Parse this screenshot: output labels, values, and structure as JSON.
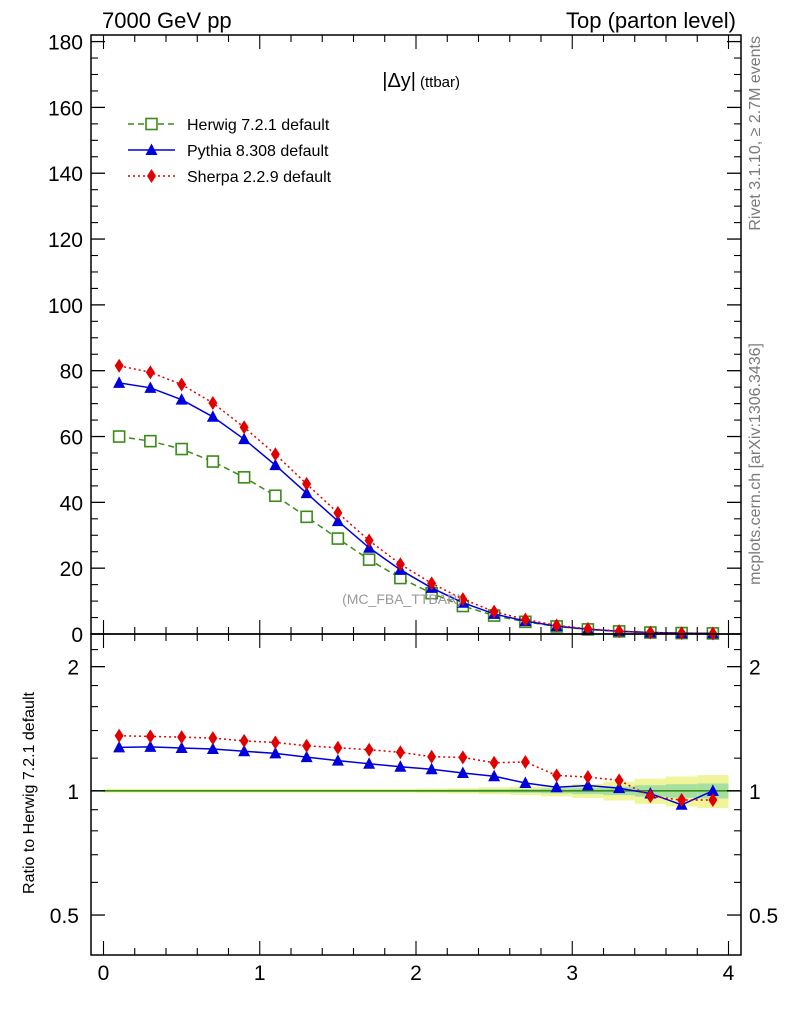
{
  "header": {
    "left_title": "7000 GeV pp",
    "right_title": "Top (parton level)"
  },
  "side_labels": {
    "rivet": "Rivet 3.1.10, ≥ 2.7M events",
    "mcplots": "mcplots.cern.ch [arXiv:1306.3436]"
  },
  "chart_data": [
    {
      "type": "line",
      "panel": "main",
      "title": "|Δy| (ttbar)",
      "title_main": "|Δy|",
      "title_suffix": "(ttbar)",
      "analysis_label": "(MC_FBA_TTBAR)",
      "xlim": [
        -0.08,
        4.08
      ],
      "ylim": [
        0,
        182
      ],
      "yticks": [
        0,
        20,
        40,
        60,
        80,
        100,
        120,
        140,
        160,
        180
      ],
      "ytick_labels": [
        "0",
        "20",
        "40",
        "60",
        "80",
        "100",
        "120",
        "140",
        "160",
        "180"
      ],
      "legend_position": "top-left",
      "x": [
        0.1,
        0.3,
        0.5,
        0.7,
        0.9,
        1.1,
        1.3,
        1.5,
        1.7,
        1.9,
        2.1,
        2.3,
        2.5,
        2.7,
        2.9,
        3.1,
        3.3,
        3.5,
        3.7,
        3.9
      ],
      "series": [
        {
          "name": "Herwig 7.2.1 default",
          "color": "#3a8a1a",
          "marker": "open-square",
          "line_style": "dashed",
          "values": [
            60.0,
            58.6,
            56.2,
            52.4,
            47.6,
            42.0,
            35.6,
            29.0,
            22.6,
            17.0,
            12.4,
            8.5,
            5.6,
            3.7,
            2.3,
            1.4,
            0.8,
            0.45,
            0.28,
            0.18
          ]
        },
        {
          "name": "Pythia 8.308 default",
          "color": "#0000dd",
          "marker": "filled-triangle",
          "line_style": "solid",
          "values": [
            76.3,
            74.8,
            71.2,
            66.0,
            59.2,
            51.3,
            42.8,
            34.3,
            26.2,
            19.5,
            14.0,
            9.5,
            6.1,
            3.9,
            2.4,
            1.45,
            0.82,
            0.45,
            0.26,
            0.18
          ]
        },
        {
          "name": "Sherpa 2.2.9 default",
          "color": "#e00000",
          "marker": "filled-diamond",
          "line_style": "dotted",
          "values": [
            81.5,
            79.5,
            75.8,
            70.2,
            62.8,
            54.6,
            45.6,
            36.8,
            28.4,
            21.2,
            15.4,
            10.6,
            6.8,
            4.4,
            2.6,
            1.55,
            0.88,
            0.44,
            0.27,
            0.17
          ]
        }
      ]
    },
    {
      "type": "line",
      "panel": "ratio",
      "ylabel": "Ratio to Herwig 7.2.1 default",
      "log_y": true,
      "xlim": [
        -0.08,
        4.08
      ],
      "ylim": [
        0.4,
        2.4
      ],
      "xticks": [
        0,
        1,
        2,
        3,
        4
      ],
      "xtick_labels": [
        "0",
        "1",
        "2",
        "3",
        "4"
      ],
      "yticks": [
        0.5,
        1,
        2
      ],
      "ytick_labels": [
        "0.5",
        "1",
        "2"
      ],
      "x": [
        0.1,
        0.3,
        0.5,
        0.7,
        0.9,
        1.1,
        1.3,
        1.5,
        1.7,
        1.9,
        2.1,
        2.3,
        2.5,
        2.7,
        2.9,
        3.1,
        3.3,
        3.5,
        3.7,
        3.9
      ],
      "reference_band": {
        "name": "Herwig 7.2.1 default",
        "color": "#3a8a1a",
        "band_color": "#f0f59a",
        "inner_band_color": "#a6e0a0",
        "half_width": [
          0.003,
          0.003,
          0.003,
          0.003,
          0.003,
          0.003,
          0.003,
          0.003,
          0.003,
          0.003,
          0.004,
          0.005,
          0.007,
          0.009,
          0.012,
          0.016,
          0.022,
          0.03,
          0.036,
          0.04
        ]
      },
      "series": [
        {
          "name": "Pythia 8.308 default",
          "color": "#0000dd",
          "marker": "filled-triangle",
          "line_style": "solid",
          "values": [
            1.275,
            1.278,
            1.27,
            1.263,
            1.247,
            1.233,
            1.207,
            1.184,
            1.163,
            1.144,
            1.128,
            1.105,
            1.085,
            1.045,
            1.02,
            1.03,
            1.015,
            0.985,
            0.925,
            1.0
          ]
        },
        {
          "name": "Sherpa 2.2.9 default",
          "color": "#e00000",
          "marker": "filled-diamond",
          "line_style": "dotted",
          "values": [
            1.36,
            1.355,
            1.35,
            1.342,
            1.322,
            1.31,
            1.286,
            1.272,
            1.258,
            1.24,
            1.21,
            1.205,
            1.17,
            1.175,
            1.09,
            1.08,
            1.06,
            0.97,
            0.95,
            0.95
          ]
        }
      ]
    }
  ]
}
